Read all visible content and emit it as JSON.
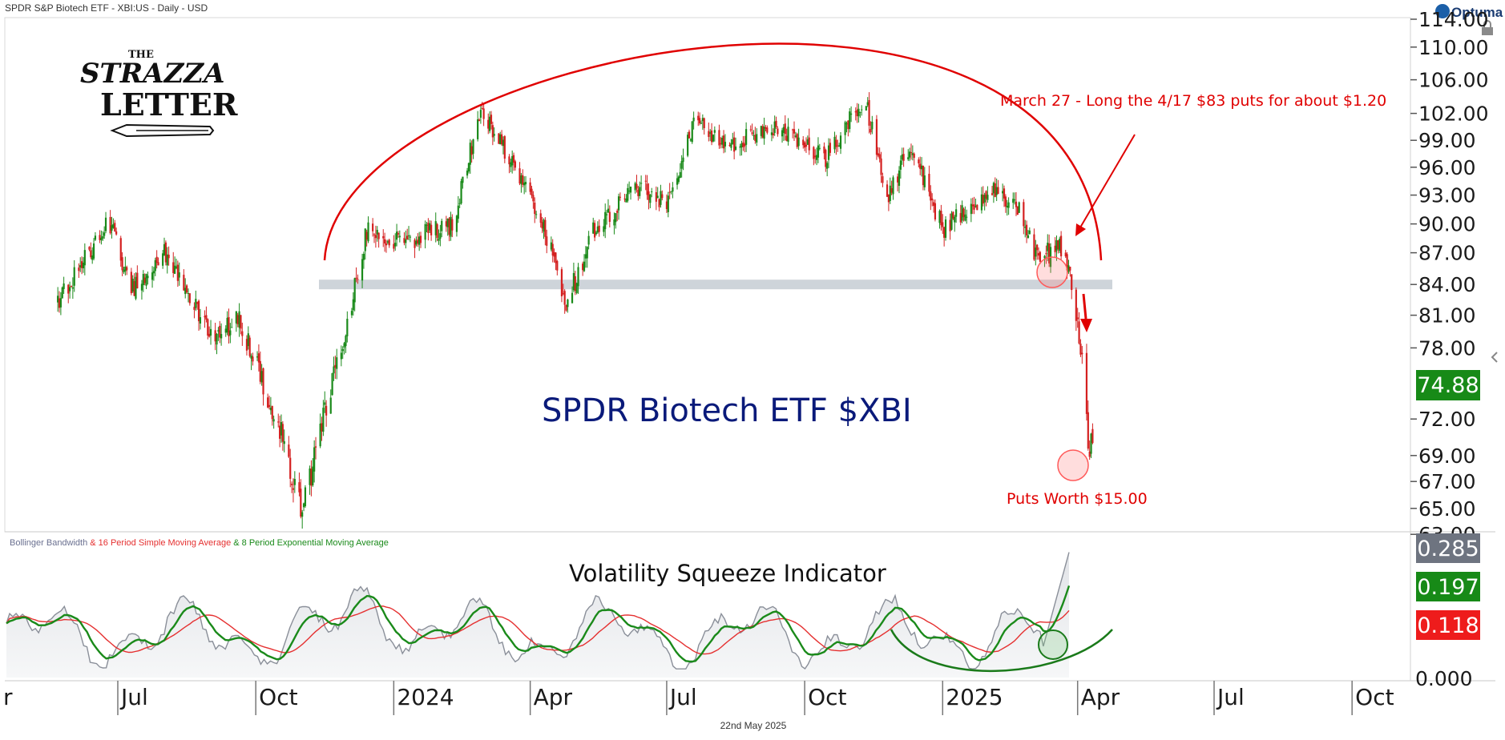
{
  "header": {
    "title": "SPDR S&P Biotech ETF - XBI:US - Daily - USD",
    "brand": "Optuma",
    "date_footer": "22nd May 2025"
  },
  "logo": {
    "line1": "THE",
    "line2": "STRAZZA",
    "line3": "LETTER"
  },
  "labels": {
    "main_title": "SPDR Biotech ETF $XBI",
    "sub_title": "Volatility Squeeze Indicator",
    "annotation_top": "March 27 - Long the 4/17 $83 puts for about $1.20",
    "annotation_bottom": "Puts Worth $15.00"
  },
  "legend": {
    "part1": "Bollinger Bandwidth",
    "part2": " & 16 Period Simple Moving Average",
    "part3": " & 8 Period Exponential Moving Average"
  },
  "colors": {
    "up": "#1a8a1a",
    "down": "#d42020",
    "annotation": "#e00000",
    "support_band": "#c5ccd3",
    "bbw_line": "#8a8f99",
    "sma_line": "#e53030",
    "ema_line": "#1a8a1a"
  },
  "chart_data": [
    {
      "type": "candlestick",
      "title": "SPDR Biotech ETF $XBI",
      "ylim": [
        63,
        114
      ],
      "y_ticks": [
        "114.00",
        "110.00",
        "106.00",
        "102.00",
        "99.00",
        "96.00",
        "93.00",
        "90.00",
        "87.00",
        "84.00",
        "81.00",
        "78.00",
        "72.00",
        "69.00",
        "67.00",
        "65.00",
        "63.00"
      ],
      "last_price": "74.88",
      "support_level": 84.0,
      "x_ticks": [
        "r",
        "Jul",
        "Oct",
        "2024",
        "Apr",
        "Jul",
        "Oct",
        "2025",
        "Apr",
        "Jul",
        "Oct"
      ],
      "close_path": [
        {
          "date": "2023-05-20",
          "close": 82.0
        },
        {
          "date": "2023-06-15",
          "close": 88.0
        },
        {
          "date": "2023-06-25",
          "close": 90.5
        },
        {
          "date": "2023-07-10",
          "close": 83.5
        },
        {
          "date": "2023-08-01",
          "close": 87.0
        },
        {
          "date": "2023-09-01",
          "close": 79.0
        },
        {
          "date": "2023-09-20",
          "close": 80.5
        },
        {
          "date": "2023-10-15",
          "close": 72.0
        },
        {
          "date": "2023-11-01",
          "close": 64.5
        },
        {
          "date": "2023-11-15",
          "close": 72.0
        },
        {
          "date": "2023-12-01",
          "close": 80.0
        },
        {
          "date": "2023-12-15",
          "close": 90.0
        },
        {
          "date": "2024-01-05",
          "close": 88.0
        },
        {
          "date": "2024-02-10",
          "close": 90.0
        },
        {
          "date": "2024-02-28",
          "close": 102.5
        },
        {
          "date": "2024-03-15",
          "close": 98.0
        },
        {
          "date": "2024-04-10",
          "close": 89.5
        },
        {
          "date": "2024-04-25",
          "close": 82.0
        },
        {
          "date": "2024-05-15",
          "close": 90.0
        },
        {
          "date": "2024-06-15",
          "close": 94.0
        },
        {
          "date": "2024-07-01",
          "close": 92.0
        },
        {
          "date": "2024-07-20",
          "close": 101.0
        },
        {
          "date": "2024-08-10",
          "close": 98.5
        },
        {
          "date": "2024-09-10",
          "close": 100.5
        },
        {
          "date": "2024-10-15",
          "close": 97.0
        },
        {
          "date": "2024-11-10",
          "close": 104.0
        },
        {
          "date": "2024-11-25",
          "close": 92.5
        },
        {
          "date": "2024-12-10",
          "close": 98.5
        },
        {
          "date": "2025-01-01",
          "close": 89.5
        },
        {
          "date": "2025-02-01",
          "close": 93.5
        },
        {
          "date": "2025-02-20",
          "close": 92.0
        },
        {
          "date": "2025-03-05",
          "close": 86.5
        },
        {
          "date": "2025-03-20",
          "close": 87.5
        },
        {
          "date": "2025-03-27",
          "close": 85.5
        },
        {
          "date": "2025-04-01",
          "close": 80.5
        },
        {
          "date": "2025-04-04",
          "close": 77.0
        },
        {
          "date": "2025-04-09",
          "close": 68.5
        },
        {
          "date": "2025-04-14",
          "close": 74.88
        }
      ]
    },
    {
      "type": "line",
      "title": "Volatility Squeeze Indicator",
      "y_ticks": [
        "0.000"
      ],
      "series": [
        {
          "name": "Bollinger Bandwidth",
          "last_value": "0.285"
        },
        {
          "name": "16 Period Simple Moving Average",
          "last_value": "0.118"
        },
        {
          "name": "8 Period Exponential Moving Average",
          "last_value": "0.197"
        }
      ]
    }
  ]
}
